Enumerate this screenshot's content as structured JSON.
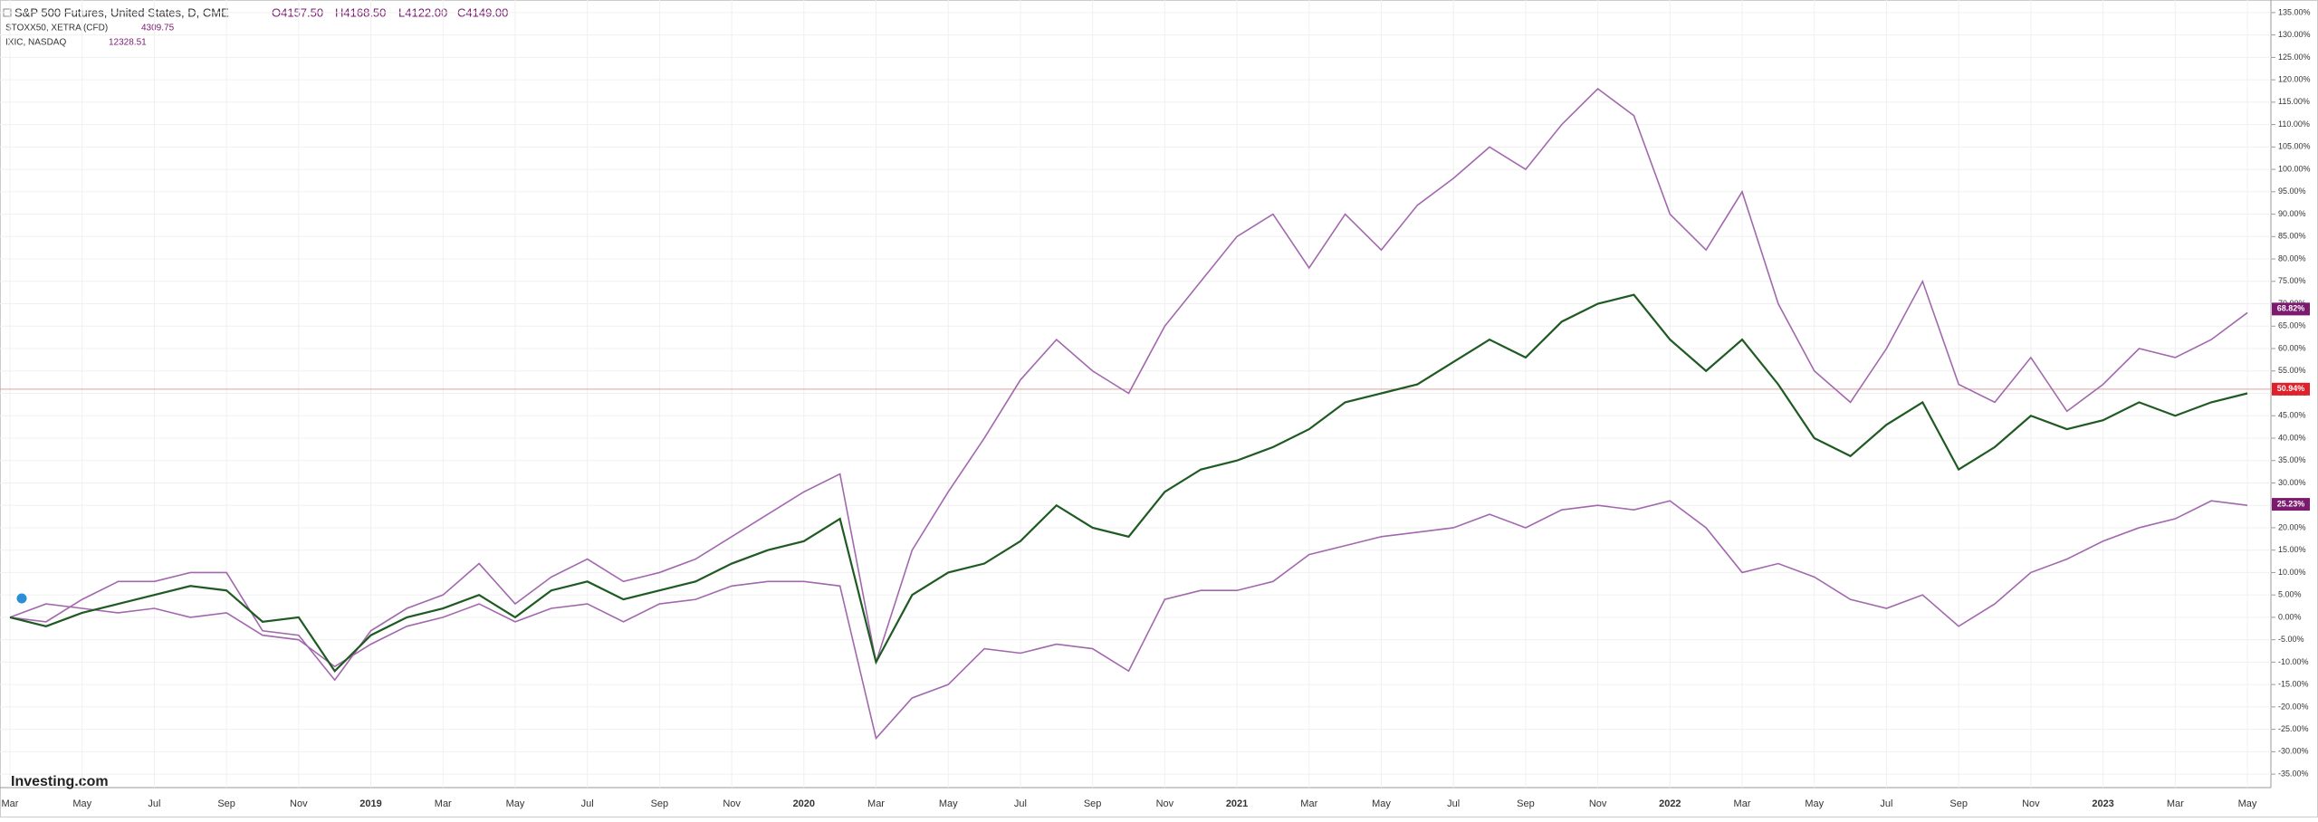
{
  "header": {
    "ohlc": [
      "O4157.50",
      "H4168.50",
      "L4122.00",
      "C4149.00"
    ],
    "stoxx_value": "4309.75",
    "nasdaq_value": "12328.51",
    "watermark": "Investing.com"
  },
  "chart_data": {
    "type": "line",
    "categories": [
      "Mar",
      null,
      "May",
      null,
      "Jul",
      null,
      "Sep",
      null,
      "Nov",
      null,
      "2019",
      null,
      "Mar",
      null,
      "May",
      null,
      "Jul",
      null,
      "Sep",
      null,
      "Nov",
      null,
      "2020",
      null,
      "Mar",
      null,
      "May",
      null,
      "Jul",
      null,
      "Sep",
      null,
      "Nov",
      null,
      "2021",
      null,
      "Mar",
      null,
      "May",
      null,
      "Jul",
      null,
      "Sep",
      null,
      "Nov",
      null,
      "2022",
      null,
      "Mar",
      null,
      "May",
      null,
      "Jul",
      null,
      "Sep",
      null,
      "Nov",
      null,
      "2023",
      null,
      "Mar",
      null,
      "May"
    ],
    "series": [
      {
        "name": "S&P 500 Futures, United States, D, CME",
        "color": "#1f5a22",
        "badge": {
          "value": 50.94,
          "label": "50.94%"
        },
        "badge_color": "#e0202a",
        "values": [
          0,
          -2,
          1,
          3,
          5,
          7,
          6,
          -1,
          0,
          -12,
          -4,
          0,
          2,
          5,
          0,
          6,
          8,
          4,
          6,
          8,
          12,
          15,
          17,
          22,
          -10,
          5,
          10,
          12,
          17,
          25,
          20,
          18,
          28,
          33,
          35,
          38,
          42,
          48,
          50,
          52,
          57,
          62,
          58,
          66,
          70,
          72,
          62,
          55,
          62,
          52,
          40,
          36,
          43,
          48,
          33,
          38,
          45,
          42,
          44,
          48,
          45,
          48,
          50
        ]
      },
      {
        "name": "STOXX50, XETRA (CFD)",
        "color": "#a268ad",
        "badge": {
          "value": 25.23,
          "label": "25.23%"
        },
        "badge_color": "#7b1a6f",
        "values": [
          0,
          3,
          2,
          1,
          2,
          0,
          1,
          -4,
          -5,
          -11,
          -6,
          -2,
          0,
          3,
          -1,
          2,
          3,
          -1,
          3,
          4,
          7,
          8,
          8,
          7,
          -27,
          -18,
          -15,
          -7,
          -8,
          -6,
          -7,
          -12,
          4,
          6,
          6,
          8,
          14,
          16,
          18,
          19,
          20,
          23,
          20,
          24,
          25,
          24,
          26,
          20,
          10,
          12,
          9,
          4,
          2,
          5,
          -2,
          3,
          10,
          13,
          17,
          20,
          22,
          26,
          25
        ]
      },
      {
        "name": "IXIC, NASDAQ",
        "color": "#a268ad",
        "badge": {
          "value": 68.82,
          "label": "68.82%"
        },
        "badge_color": "#7b1a6f",
        "values": [
          0,
          -1,
          4,
          8,
          8,
          10,
          10,
          -3,
          -4,
          -14,
          -3,
          2,
          5,
          12,
          3,
          9,
          13,
          8,
          10,
          13,
          18,
          23,
          28,
          32,
          -10,
          15,
          28,
          40,
          53,
          62,
          55,
          50,
          65,
          75,
          85,
          90,
          78,
          90,
          82,
          92,
          98,
          105,
          100,
          110,
          118,
          112,
          90,
          82,
          95,
          70,
          55,
          48,
          60,
          75,
          52,
          48,
          58,
          46,
          52,
          60,
          58,
          62,
          68
        ]
      }
    ],
    "ylim": [
      -37,
      137
    ],
    "yticks": [
      {
        "value": -35,
        "label": "-35.00%"
      },
      {
        "value": -30,
        "label": "-30.00%"
      },
      {
        "value": -25,
        "label": "-25.00%"
      },
      {
        "value": -20,
        "label": "-20.00%"
      },
      {
        "value": -15,
        "label": "-15.00%"
      },
      {
        "value": -10,
        "label": "-10.00%"
      },
      {
        "value": -5,
        "label": "-5.00%"
      },
      {
        "value": 0,
        "label": "0.00%"
      },
      {
        "value": 5,
        "label": "5.00%"
      },
      {
        "value": 10,
        "label": "10.00%"
      },
      {
        "value": 15,
        "label": "15.00%"
      },
      {
        "value": 20,
        "label": "20.00%"
      },
      {
        "value": 25,
        "label": "25.00%"
      },
      {
        "value": 30,
        "label": "30.00%"
      },
      {
        "value": 35,
        "label": "35.00%"
      },
      {
        "value": 40,
        "label": "40.00%"
      },
      {
        "value": 45,
        "label": "45.00%"
      },
      {
        "value": 50,
        "label": "50.00%"
      },
      {
        "value": 55,
        "label": "55.00%"
      },
      {
        "value": 60,
        "label": "60.00%"
      },
      {
        "value": 65,
        "label": "65.00%"
      },
      {
        "value": 70,
        "label": "70.00%"
      },
      {
        "value": 75,
        "label": "75.00%"
      },
      {
        "value": 80,
        "label": "80.00%"
      },
      {
        "value": 85,
        "label": "85.00%"
      },
      {
        "value": 90,
        "label": "90.00%"
      },
      {
        "value": 95,
        "label": "95.00%"
      },
      {
        "value": 100,
        "label": "100.00%"
      },
      {
        "value": 105,
        "label": "105.00%"
      },
      {
        "value": 110,
        "label": "110.00%"
      },
      {
        "value": 115,
        "label": "115.00%"
      },
      {
        "value": 120,
        "label": "120.00%"
      },
      {
        "value": 125,
        "label": "125.00%"
      },
      {
        "value": 130,
        "label": "130.00%"
      },
      {
        "value": 135,
        "label": "135.00%"
      }
    ],
    "grid": true
  }
}
